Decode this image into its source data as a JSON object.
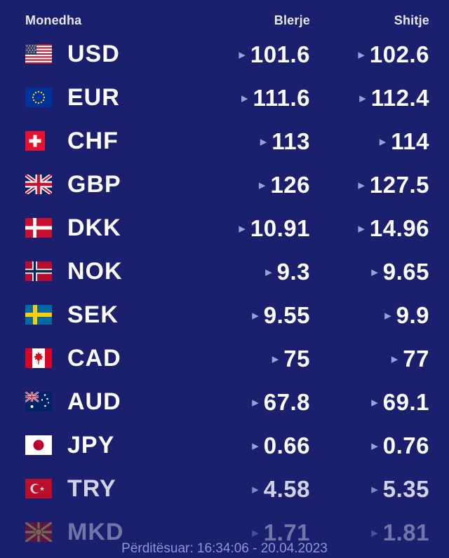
{
  "header": {
    "currency": "Monedha",
    "buy": "Blerje",
    "sell": "Shitje"
  },
  "arrow_icon": "▸",
  "rows": [
    {
      "code": "USD",
      "buy": "101.6",
      "sell": "102.6"
    },
    {
      "code": "EUR",
      "buy": "111.6",
      "sell": "112.4"
    },
    {
      "code": "CHF",
      "buy": "113",
      "sell": "114"
    },
    {
      "code": "GBP",
      "buy": "126",
      "sell": "127.5"
    },
    {
      "code": "DKK",
      "buy": "10.91",
      "sell": "14.96"
    },
    {
      "code": "NOK",
      "buy": "9.3",
      "sell": "9.65"
    },
    {
      "code": "SEK",
      "buy": "9.55",
      "sell": "9.9"
    },
    {
      "code": "CAD",
      "buy": "75",
      "sell": "77"
    },
    {
      "code": "AUD",
      "buy": "67.8",
      "sell": "69.1"
    },
    {
      "code": "JPY",
      "buy": "0.66",
      "sell": "0.76"
    },
    {
      "code": "TRY",
      "buy": "4.58",
      "sell": "5.35"
    },
    {
      "code": "MKD",
      "buy": "1.71",
      "sell": "1.81"
    }
  ],
  "footer": {
    "updated": "Përditësuar: 16:34:06 - 20.04.2023"
  },
  "colors": {
    "background": "#1b206e",
    "value_text": "#ffffff",
    "header_text": "#e6e8f5",
    "arrow": "#99a1d8",
    "footer_text": "#8f94d4"
  }
}
